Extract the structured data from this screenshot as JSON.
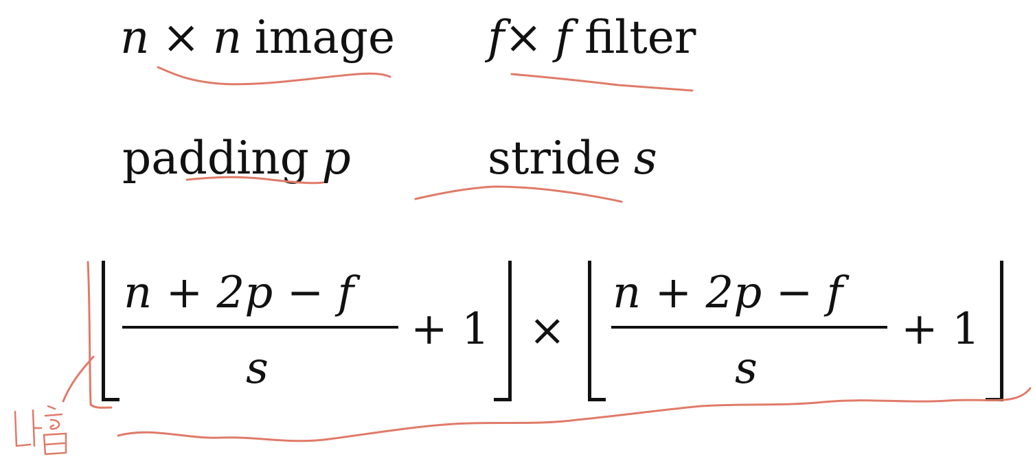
{
  "line1": {
    "image": {
      "var1": "n",
      "times": "×",
      "var2": "n",
      "word": "image"
    },
    "filter": {
      "var1": "f",
      "times": "×",
      "var2": "f",
      "word": "filter"
    }
  },
  "line2": {
    "padding": {
      "word": "padding",
      "var": "p"
    },
    "stride": {
      "word": "stride",
      "var": "s"
    }
  },
  "formula": {
    "left": {
      "numerator": "n + 2p  − f",
      "denominator": "s",
      "plus_one": "+ 1"
    },
    "times": "×",
    "right": {
      "numerator": "n + 2p  − f",
      "denominator": "s",
      "plus_one": "+ 1"
    }
  },
  "annotation": {
    "ink_color": "#e07a68",
    "handwritten_note": "내림"
  }
}
